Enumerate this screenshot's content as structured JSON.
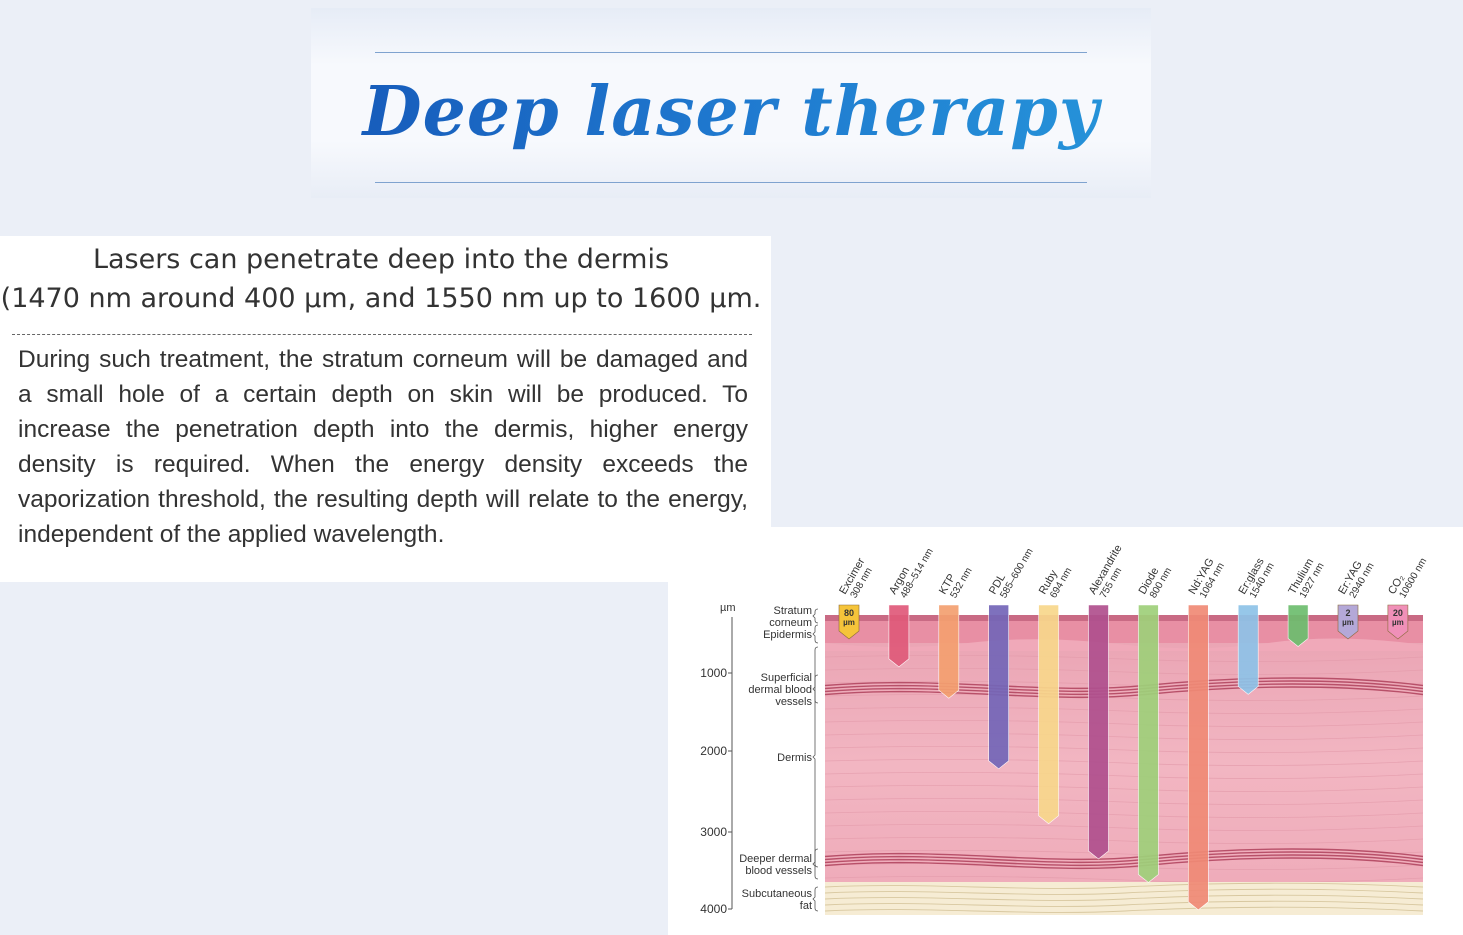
{
  "banner": {
    "title": "Deep laser therapy"
  },
  "headline": {
    "line1": "Lasers can penetrate deep into the dermis",
    "line2": "(1470 nm around 400 µm, and 1550 nm up to 1600 µm."
  },
  "body": {
    "paragraph": "During such treatment, the stratum corneum will be damaged and a small hole of a certain depth on skin will be produced. To increase the penetration depth into the dermis, higher energy density is required. When the energy density exceeds the vaporization threshold, the resulting depth will relate to the energy, independent of the applied wavelength."
  },
  "diagram": {
    "unit": "µm",
    "depth_ticks": [
      "1000",
      "2000",
      "3000",
      "4000"
    ],
    "layers": {
      "stratum_corneum": [
        "Stratum",
        "corneum"
      ],
      "epidermis": [
        "Epidermis"
      ],
      "superficial_vessels": [
        "Superficial",
        "dermal blood",
        "vessels"
      ],
      "dermis": [
        "Dermis"
      ],
      "deeper_vessels": [
        "Deeper dermal",
        "blood vessels"
      ],
      "subcutaneous_fat": [
        "Subcutaneous",
        "fat"
      ]
    },
    "lasers": [
      {
        "name": "Excimer",
        "wavelength": "308 nm",
        "badge": [
          "80",
          "µm"
        ],
        "depth_um": 80,
        "color": "#f5c43a"
      },
      {
        "name": "Argon",
        "wavelength": "488–514 nm",
        "depth_um": 700,
        "color": "#e05a7a"
      },
      {
        "name": "KTP",
        "wavelength": "532 nm",
        "depth_um": 1100,
        "color": "#f4a070"
      },
      {
        "name": "PDL",
        "wavelength": "585–600 nm",
        "depth_um": 2000,
        "color": "#7466b8"
      },
      {
        "name": "Ruby",
        "wavelength": "694 nm",
        "depth_um": 2700,
        "color": "#f8d78c"
      },
      {
        "name": "Alexandrite",
        "wavelength": "755 nm",
        "depth_um": 3150,
        "color": "#b0508e"
      },
      {
        "name": "Diode",
        "wavelength": "800 nm",
        "depth_um": 3450,
        "color": "#9fd07a"
      },
      {
        "name": "Nd:YAG",
        "wavelength": "1064 nm",
        "depth_um": 3800,
        "color": "#f08a76"
      },
      {
        "name": "Er:glass",
        "wavelength": "1540 nm",
        "depth_um": 1050,
        "color": "#8ec3e8"
      },
      {
        "name": "Thulium",
        "wavelength": "1927 nm",
        "depth_um": 440,
        "color": "#6dbd6e"
      },
      {
        "name": "Er:YAG",
        "wavelength": "2940 nm",
        "badge": [
          "2",
          "µm"
        ],
        "depth_um": 2,
        "color": "#b4a8d8"
      },
      {
        "name": "CO₂",
        "wavelength": "10600 nm",
        "badge": [
          "20",
          "µm"
        ],
        "depth_um": 20,
        "color": "#f090b8"
      }
    ]
  }
}
